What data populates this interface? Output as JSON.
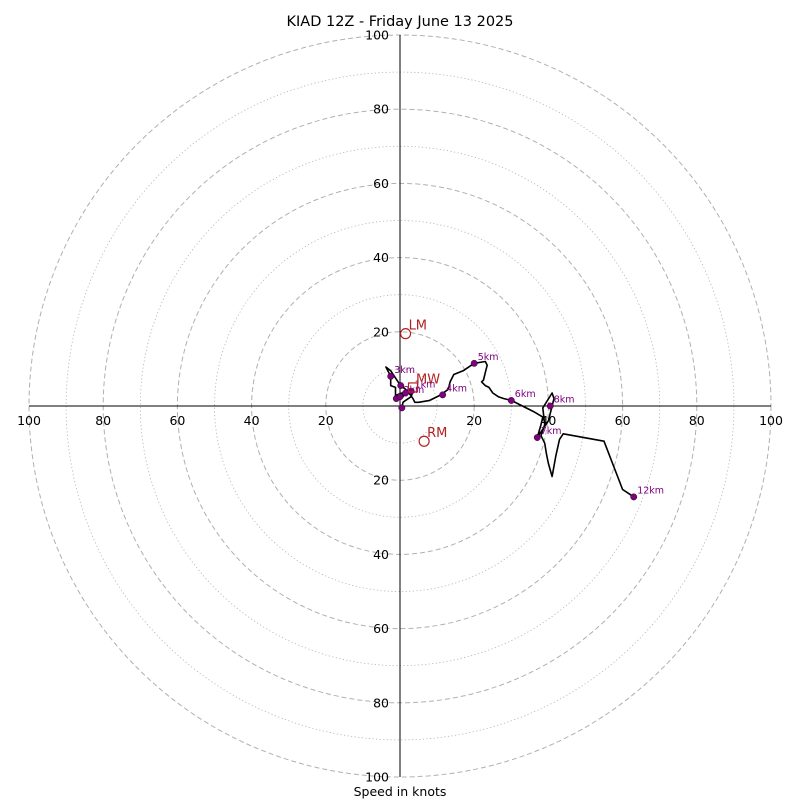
{
  "chart_data": {
    "type": "scatter",
    "chart_kind": "hodograph",
    "title": "KIAD 12Z - Friday June 13 2025",
    "xlabel": "Speed in knots",
    "ring_labels": [
      "20",
      "40",
      "60",
      "80",
      "100"
    ],
    "range": [
      -100,
      100
    ],
    "rings_major": [
      20,
      40,
      60,
      80,
      100
    ],
    "rings_minor": [
      10,
      30,
      50,
      70,
      90
    ],
    "grid": true,
    "colors": {
      "trace": "#000000",
      "height_markers": "#800080",
      "storm_motion": "#b22222",
      "grid": "#b0b0b0"
    },
    "trace": [
      [
        0.5,
        -0.5
      ],
      [
        0.8,
        1
      ],
      [
        1.5,
        1.5
      ],
      [
        3,
        2.5
      ],
      [
        3.5,
        4
      ],
      [
        2.5,
        4.5
      ],
      [
        1.5,
        3.5
      ],
      [
        0.8,
        2.5
      ],
      [
        0.5,
        3.5
      ],
      [
        -0.8,
        3
      ],
      [
        -1.2,
        2.5
      ],
      [
        -1.2,
        5
      ],
      [
        -2.5,
        5.5
      ],
      [
        -2.5,
        8
      ],
      [
        -3.8,
        10.5
      ],
      [
        -2.5,
        9.5
      ],
      [
        -1.5,
        8
      ],
      [
        -0.5,
        6.5
      ],
      [
        0.2,
        5.5
      ],
      [
        1.5,
        4.5
      ],
      [
        2.8,
        3
      ],
      [
        3.5,
        2
      ],
      [
        4,
        1
      ],
      [
        5,
        1
      ],
      [
        8,
        1.5
      ],
      [
        11,
        3
      ],
      [
        13,
        4.5
      ],
      [
        13.5,
        6.5
      ],
      [
        14.5,
        8.5
      ],
      [
        17,
        9.5
      ],
      [
        20,
        11.5
      ],
      [
        23,
        12
      ],
      [
        23.5,
        11
      ],
      [
        23,
        9
      ],
      [
        22.5,
        7
      ],
      [
        22,
        6.5
      ],
      [
        23,
        5.5
      ],
      [
        24,
        5
      ],
      [
        25,
        3.5
      ],
      [
        26.5,
        2.5
      ],
      [
        28,
        2
      ],
      [
        30,
        1.5
      ],
      [
        33,
        0
      ],
      [
        36,
        -1.5
      ],
      [
        38.5,
        -3
      ],
      [
        38,
        -5
      ],
      [
        37,
        -8.5
      ],
      [
        40,
        -4
      ],
      [
        41,
        0
      ],
      [
        41.5,
        2
      ],
      [
        41,
        3.5
      ],
      [
        38.5,
        -0.5
      ],
      [
        39,
        -5
      ],
      [
        38,
        -8
      ],
      [
        39,
        -10
      ],
      [
        39.5,
        -13
      ],
      [
        40,
        -15.5
      ],
      [
        41,
        -19
      ],
      [
        42,
        -13.5
      ],
      [
        43,
        -9
      ],
      [
        44,
        -7.5
      ],
      [
        55,
        -9.5
      ],
      [
        60,
        -22.5
      ],
      [
        61.5,
        -23.5
      ],
      [
        63,
        -24.5
      ]
    ],
    "height_markers": [
      {
        "label": "",
        "x": 0.5,
        "y": -0.5
      },
      {
        "label": "",
        "x": -1,
        "y": 2
      },
      {
        "label": "1km",
        "x": 3,
        "y": 4
      },
      {
        "label": "2km",
        "x": 0,
        "y": 2.5
      },
      {
        "label": "",
        "x": 1.5,
        "y": 3.5
      },
      {
        "label": "3km",
        "x": -2.5,
        "y": 8
      },
      {
        "label": "",
        "x": 0.2,
        "y": 5.5
      },
      {
        "label": "4km",
        "x": 11.5,
        "y": 3
      },
      {
        "label": "5km",
        "x": 20,
        "y": 11.5
      },
      {
        "label": "6km",
        "x": 30,
        "y": 1.5
      },
      {
        "label": "8km",
        "x": 40.5,
        "y": 0
      },
      {
        "label": "7km",
        "x": 37,
        "y": -8.5
      },
      {
        "label": "12km",
        "x": 63,
        "y": -24.5
      }
    ],
    "storm_motion": [
      {
        "label": "LM",
        "x": 1.5,
        "y": 19.5,
        "marker": "circle"
      },
      {
        "label": "MW",
        "x": 3.5,
        "y": 5,
        "marker": "square"
      },
      {
        "label": "RM",
        "x": 6.5,
        "y": -9.5,
        "marker": "circle"
      }
    ]
  }
}
